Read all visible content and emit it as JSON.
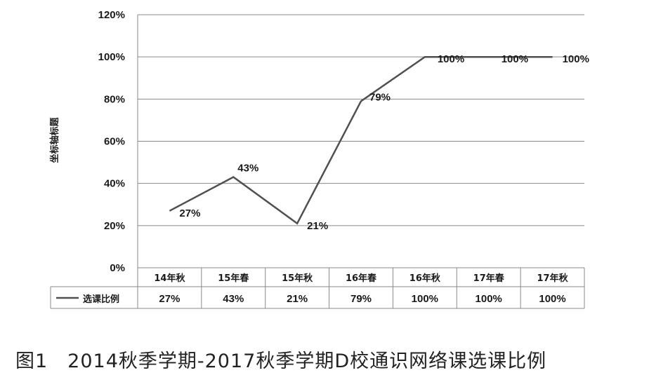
{
  "caption": "图1　2014秋季学期-2017秋季学期D校通识网络课选课比例",
  "chart_data": {
    "type": "line",
    "ylabel": "坐标轴标题",
    "ylim": [
      0,
      1.2
    ],
    "yticks": [
      "0%",
      "20%",
      "40%",
      "60%",
      "80%",
      "100%",
      "120%"
    ],
    "grid": "horizontal",
    "categories": [
      "14年秋",
      "15年春",
      "15年秋",
      "16年春",
      "16年秋",
      "17年春",
      "17年秋"
    ],
    "series": [
      {
        "name": "选课比例",
        "values": [
          0.27,
          0.43,
          0.21,
          0.79,
          1.0,
          1.0,
          1.0
        ],
        "labels": [
          "27%",
          "43%",
          "21%",
          "79%",
          "100%",
          "100%",
          "100%"
        ],
        "color": "#505050"
      }
    ],
    "data_table": true
  }
}
